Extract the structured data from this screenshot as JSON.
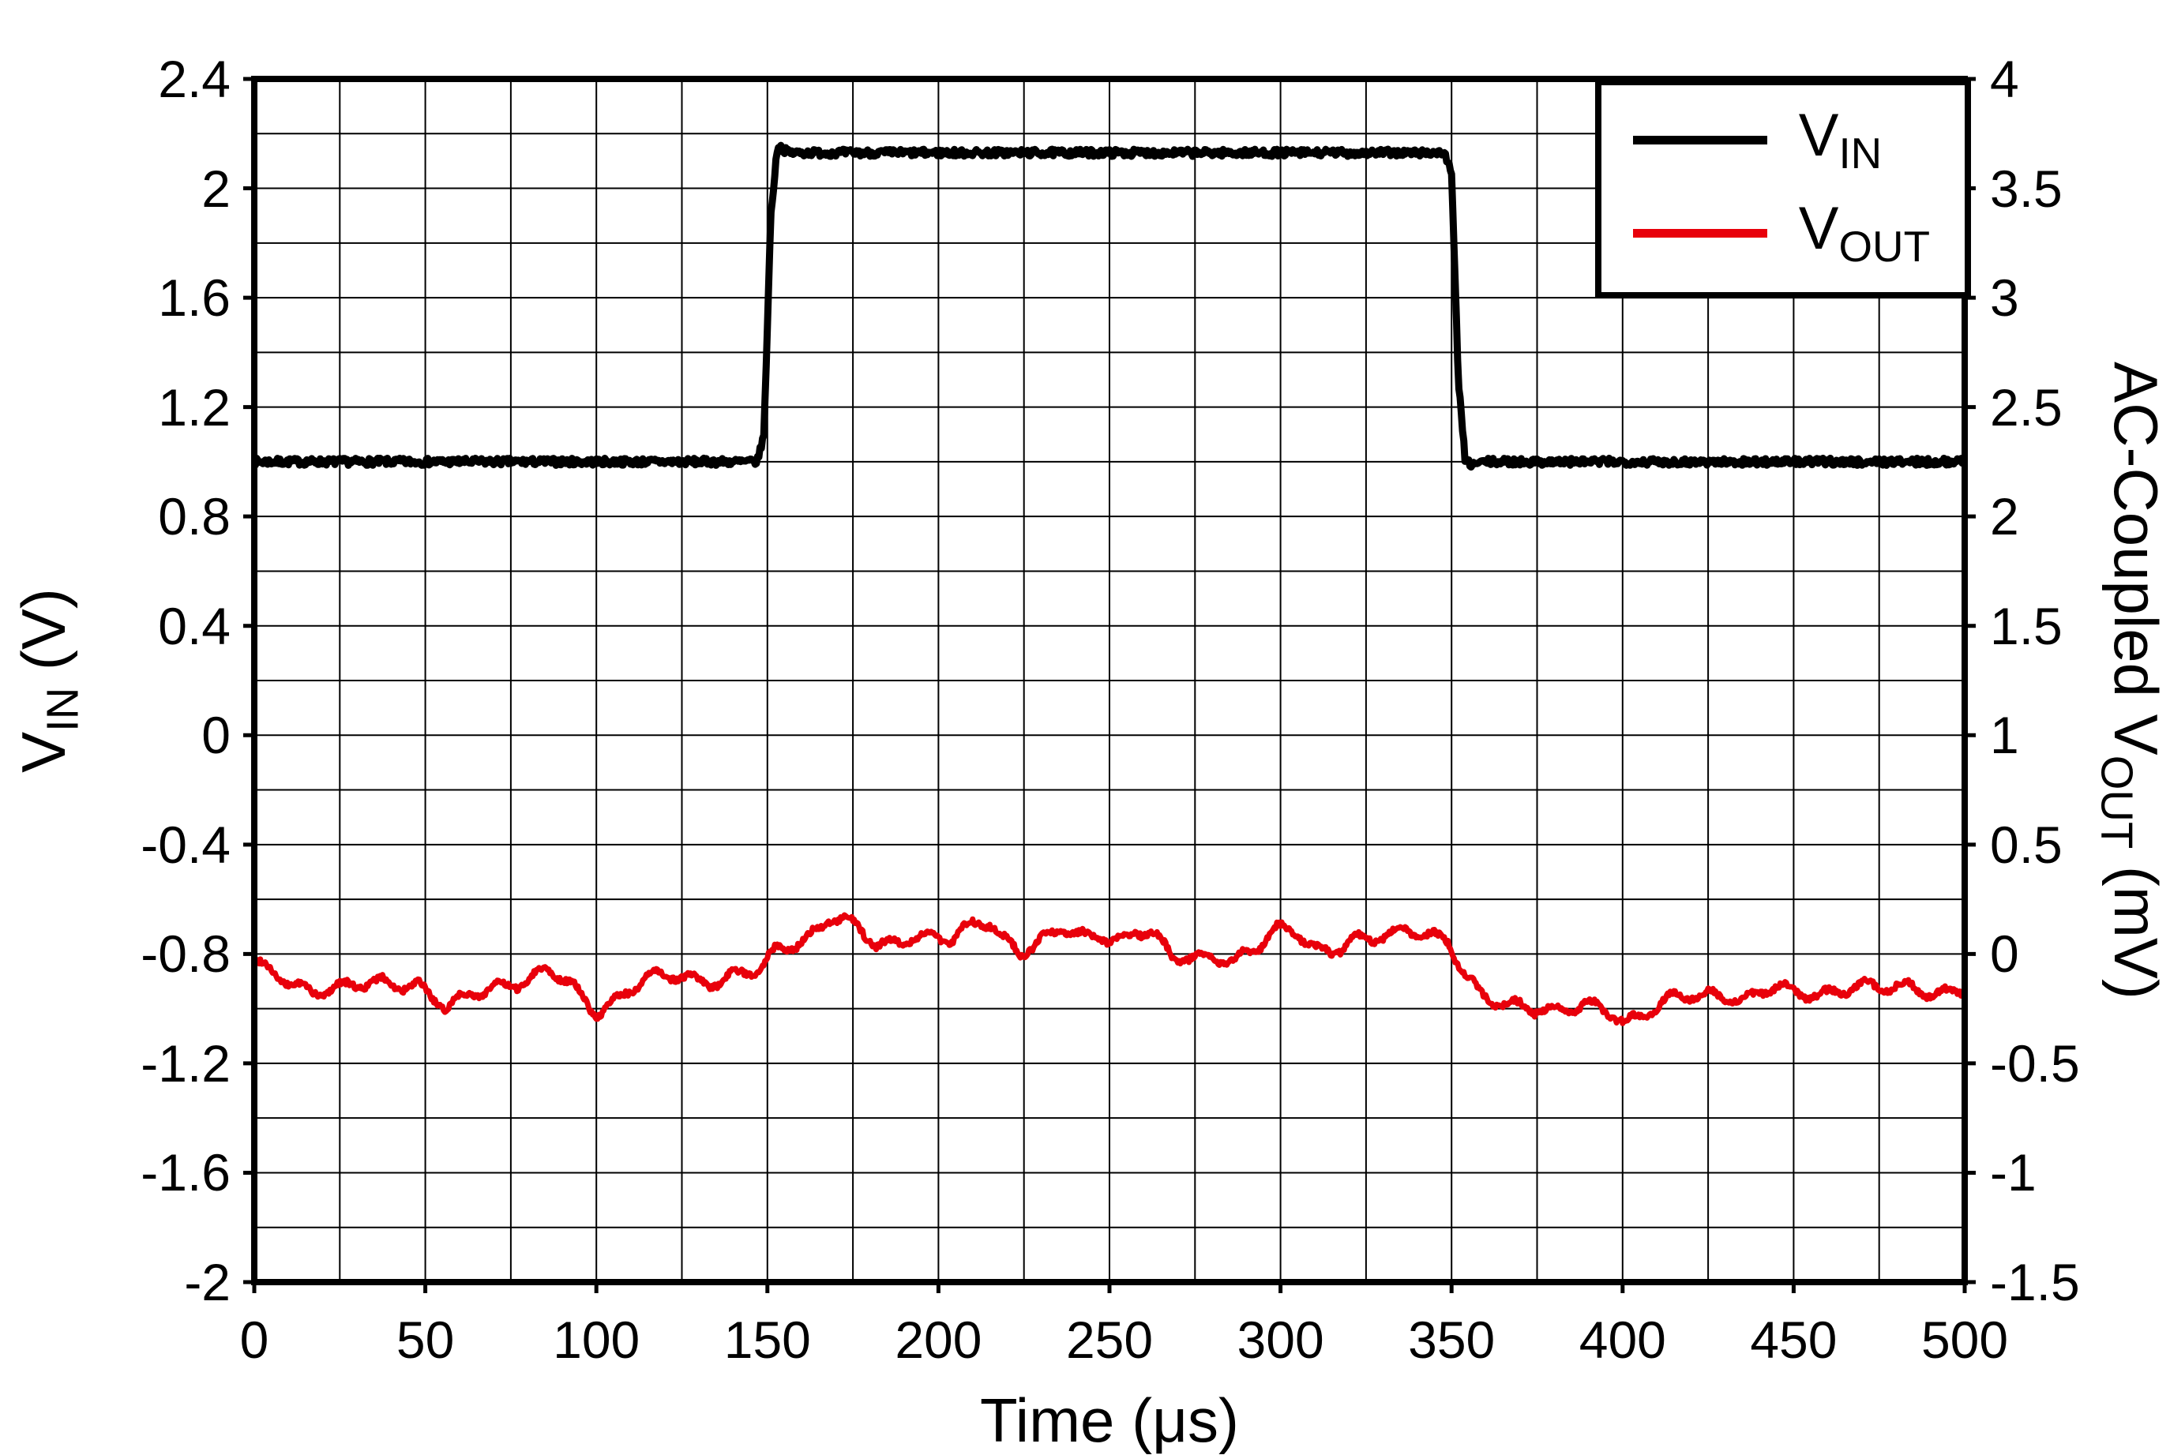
{
  "colors": {
    "vin": "#000000",
    "vout": "#e8000b",
    "grid": "#000000",
    "border": "#000000",
    "background": "#ffffff"
  },
  "legend": {
    "items": [
      {
        "name": "vin",
        "label_main": "V",
        "label_sub": "IN",
        "color": "#000000"
      },
      {
        "name": "vout",
        "label_main": "V",
        "label_sub": "OUT",
        "color": "#e8000b"
      }
    ]
  },
  "axes": {
    "x": {
      "label": "Time (μs)",
      "min": 0,
      "max": 500,
      "major_ticks": [
        0,
        50,
        100,
        150,
        200,
        250,
        300,
        350,
        400,
        450,
        500
      ],
      "minor_step": 25
    },
    "y_left": {
      "label_main": "V",
      "label_sub": "IN",
      "label_unit": " (V)",
      "min": -2,
      "max": 2.4,
      "major_ticks": [
        2.4,
        2,
        1.6,
        1.2,
        0.8,
        0.4,
        0,
        -0.4,
        -0.8,
        -1.2,
        -1.6,
        -2
      ],
      "minor_step": 0.2
    },
    "y_right": {
      "label_prefix": "AC-Coupled V",
      "label_sub": "OUT",
      "label_unit": " (mV)",
      "min": -1.5,
      "max": 4,
      "major_ticks": [
        4,
        3.5,
        3,
        2.5,
        2,
        1.5,
        1,
        0.5,
        0,
        -0.5,
        -1,
        -1.5
      ],
      "minor_step": 0.25
    }
  },
  "chart_data": {
    "type": "line",
    "title": "",
    "xlabel": "Time (μs)",
    "ylabel_left": "VIN (V)",
    "ylabel_right": "AC-Coupled VOUT (mV)",
    "x_range": [
      0,
      500
    ],
    "y_left_range": [
      -2,
      2.4
    ],
    "y_right_range": [
      -1.5,
      4
    ],
    "grid": "on",
    "legend_position": "top-right-inside",
    "series": [
      {
        "name": "VIN",
        "axis": "left",
        "color": "#000000",
        "width": 9,
        "noise": 0.013,
        "seed": 7,
        "wiggles": [],
        "points": [
          [
            0,
            1.0
          ],
          [
            147,
            1.0
          ],
          [
            149,
            1.1
          ],
          [
            151,
            1.9
          ],
          [
            153,
            2.16
          ],
          [
            156,
            2.13
          ],
          [
            200,
            2.13
          ],
          [
            300,
            2.13
          ],
          [
            348,
            2.13
          ],
          [
            350,
            2.05
          ],
          [
            352,
            1.3
          ],
          [
            354,
            1.0
          ],
          [
            356,
            0.99
          ],
          [
            360,
            1.0
          ],
          [
            500,
            1.0
          ]
        ]
      },
      {
        "name": "VOUT",
        "axis": "right",
        "color": "#e8000b",
        "width": 7,
        "noise": 0.013,
        "seed": 99,
        "wiggles": [
          {
            "a": 0.022,
            "f": 0.55,
            "p": 0.0
          },
          {
            "a": 0.016,
            "f": 0.21,
            "p": 2.0
          }
        ],
        "points": [
          [
            0,
            -0.05
          ],
          [
            8,
            -0.1
          ],
          [
            18,
            -0.17
          ],
          [
            28,
            -0.16
          ],
          [
            38,
            -0.12
          ],
          [
            48,
            -0.14
          ],
          [
            56,
            -0.26
          ],
          [
            62,
            -0.2
          ],
          [
            70,
            -0.14
          ],
          [
            80,
            -0.12
          ],
          [
            86,
            -0.08
          ],
          [
            92,
            -0.14
          ],
          [
            100,
            -0.26
          ],
          [
            108,
            -0.18
          ],
          [
            115,
            -0.12
          ],
          [
            125,
            -0.1
          ],
          [
            133,
            -0.12
          ],
          [
            140,
            -0.1
          ],
          [
            148,
            -0.08
          ],
          [
            153,
            0.02
          ],
          [
            158,
            0.05
          ],
          [
            163,
            0.1
          ],
          [
            168,
            0.17
          ],
          [
            172,
            0.15
          ],
          [
            177,
            0.1
          ],
          [
            182,
            0.03
          ],
          [
            188,
            0.06
          ],
          [
            193,
            0.1
          ],
          [
            198,
            0.08
          ],
          [
            204,
            0.06
          ],
          [
            210,
            0.12
          ],
          [
            215,
            0.15
          ],
          [
            219,
            0.08
          ],
          [
            224,
            0.02
          ],
          [
            230,
            0.06
          ],
          [
            236,
            0.1
          ],
          [
            243,
            0.07
          ],
          [
            248,
            0.09
          ],
          [
            254,
            0.07
          ],
          [
            258,
            0.11
          ],
          [
            263,
            0.09
          ],
          [
            268,
            -0.03
          ],
          [
            273,
            -0.02
          ],
          [
            280,
            0.0
          ],
          [
            287,
            -0.02
          ],
          [
            293,
            0.02
          ],
          [
            299,
            0.1
          ],
          [
            305,
            0.1
          ],
          [
            310,
            0.04
          ],
          [
            315,
            0.02
          ],
          [
            321,
            0.06
          ],
          [
            327,
            0.05
          ],
          [
            333,
            0.09
          ],
          [
            338,
            0.12
          ],
          [
            344,
            0.1
          ],
          [
            349,
            0.06
          ],
          [
            353,
            -0.08
          ],
          [
            358,
            -0.2
          ],
          [
            364,
            -0.23
          ],
          [
            370,
            -0.22
          ],
          [
            377,
            -0.25
          ],
          [
            383,
            -0.27
          ],
          [
            390,
            -0.24
          ],
          [
            396,
            -0.26
          ],
          [
            401,
            -0.3
          ],
          [
            407,
            -0.26
          ],
          [
            413,
            -0.22
          ],
          [
            420,
            -0.2
          ],
          [
            428,
            -0.18
          ],
          [
            436,
            -0.2
          ],
          [
            444,
            -0.16
          ],
          [
            452,
            -0.19
          ],
          [
            460,
            -0.17
          ],
          [
            468,
            -0.14
          ],
          [
            476,
            -0.17
          ],
          [
            484,
            -0.15
          ],
          [
            492,
            -0.17
          ],
          [
            500,
            -0.16
          ]
        ]
      }
    ]
  }
}
